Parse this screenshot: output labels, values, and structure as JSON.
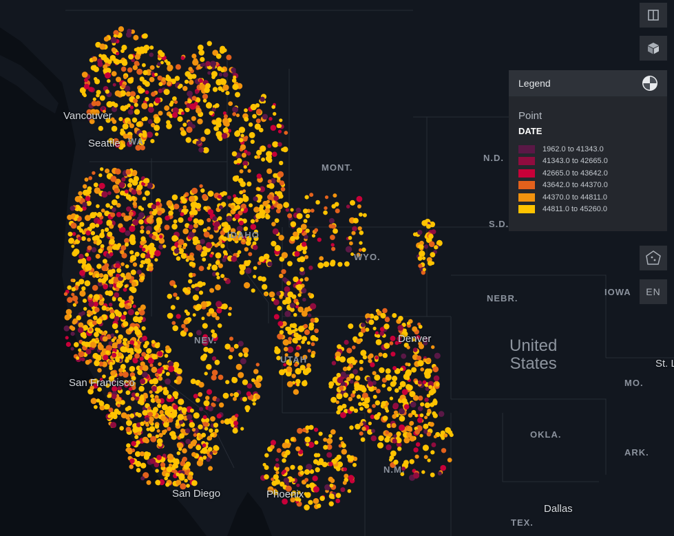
{
  "map": {
    "state_labels": [
      "MONT.",
      "WYO.",
      "N.D.",
      "S.D.",
      "NEBR.",
      "IOWA",
      "MO.",
      "OKLA.",
      "ARK.",
      "TEX.",
      "N.M.",
      "UTAH",
      "NEV.",
      "IDAHO",
      "WA"
    ],
    "city_labels": [
      "Vancouver",
      "Seattle",
      "San Francisco",
      "San Diego",
      "Phoenix",
      "Denver",
      "Dallas",
      "St. L"
    ],
    "country_label": "United\nStates",
    "background_color": "#0d1117",
    "land_color": "#12171f",
    "water_color": "#0d1117",
    "border_color": "#2a3038"
  },
  "legend": {
    "title": "Legend",
    "layer": "Point",
    "field": "DATE",
    "items": [
      {
        "label": "1962.0 to 41343.0",
        "color": "#5a1846"
      },
      {
        "label": "41343.0 to 42665.0",
        "color": "#900c3f"
      },
      {
        "label": "42665.0 to 43642.0",
        "color": "#c70039"
      },
      {
        "label": "43642.0 to 44370.0",
        "color": "#e3611c"
      },
      {
        "label": "44370.0 to 44811.0",
        "color": "#f1920e"
      },
      {
        "label": "44811.0 to 45260.0",
        "color": "#ffc300"
      }
    ]
  },
  "controls": {
    "split_map_icon": "split-map-icon",
    "3d_view_icon": "cube-icon",
    "draw_polygon_icon": "polygon-draw-icon",
    "language": "EN"
  }
}
